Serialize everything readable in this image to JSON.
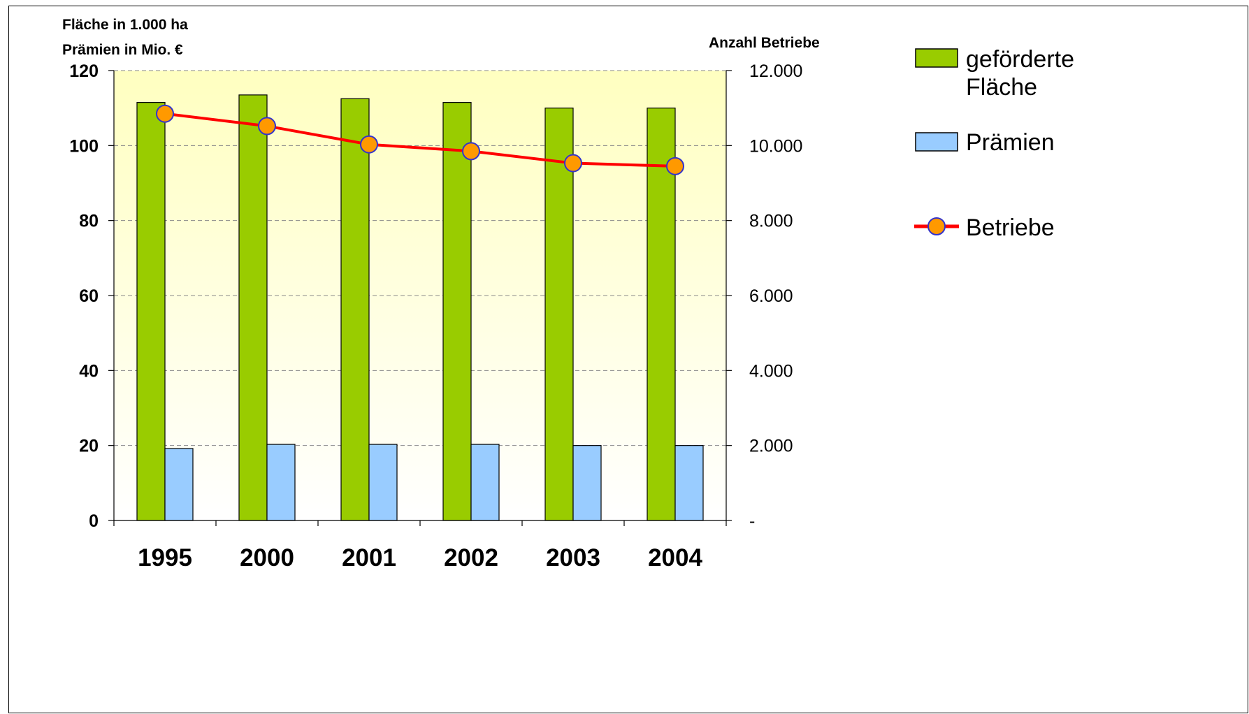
{
  "chart_data": {
    "type": "bar",
    "categories": [
      "1995",
      "2000",
      "2001",
      "2002",
      "2003",
      "2004"
    ],
    "y_left": {
      "title_lines": [
        "Fläche in 1.000 ha",
        "Prämien in Mio. €"
      ],
      "range": [
        0,
        120
      ],
      "ticks": [
        0,
        20,
        40,
        60,
        80,
        100,
        120
      ],
      "tick_labels": [
        "0",
        "20",
        "40",
        "60",
        "80",
        "100",
        "120"
      ]
    },
    "y_right": {
      "title": "Anzahl Betriebe",
      "range": [
        0,
        12000
      ],
      "ticks": [
        0,
        2000,
        4000,
        6000,
        8000,
        10000,
        12000
      ],
      "tick_labels": [
        "-",
        "2.000",
        "4.000",
        "6.000",
        "8.000",
        "10.000",
        "12.000"
      ]
    },
    "series": [
      {
        "name_lines": [
          "geförderte",
          "Fläche"
        ],
        "type": "bar",
        "axis": "left",
        "color": "#99CC00",
        "values": [
          111.5,
          113.5,
          112.5,
          111.5,
          110,
          110
        ]
      },
      {
        "name_lines": [
          "Prämien"
        ],
        "type": "bar",
        "axis": "left",
        "color": "#99CCFF",
        "values": [
          19.2,
          20.3,
          20.3,
          20.3,
          20.0,
          20.0
        ]
      },
      {
        "name_lines": [
          "Betriebe"
        ],
        "type": "line",
        "axis": "right",
        "color": "#FF0000",
        "marker_color": "#FF9900",
        "marker_border": "#3333CC",
        "values": [
          10850,
          10520,
          10030,
          9850,
          9530,
          9450
        ]
      }
    ],
    "grid": true,
    "legend_position": "right",
    "plot_background": "gradient light yellow"
  }
}
